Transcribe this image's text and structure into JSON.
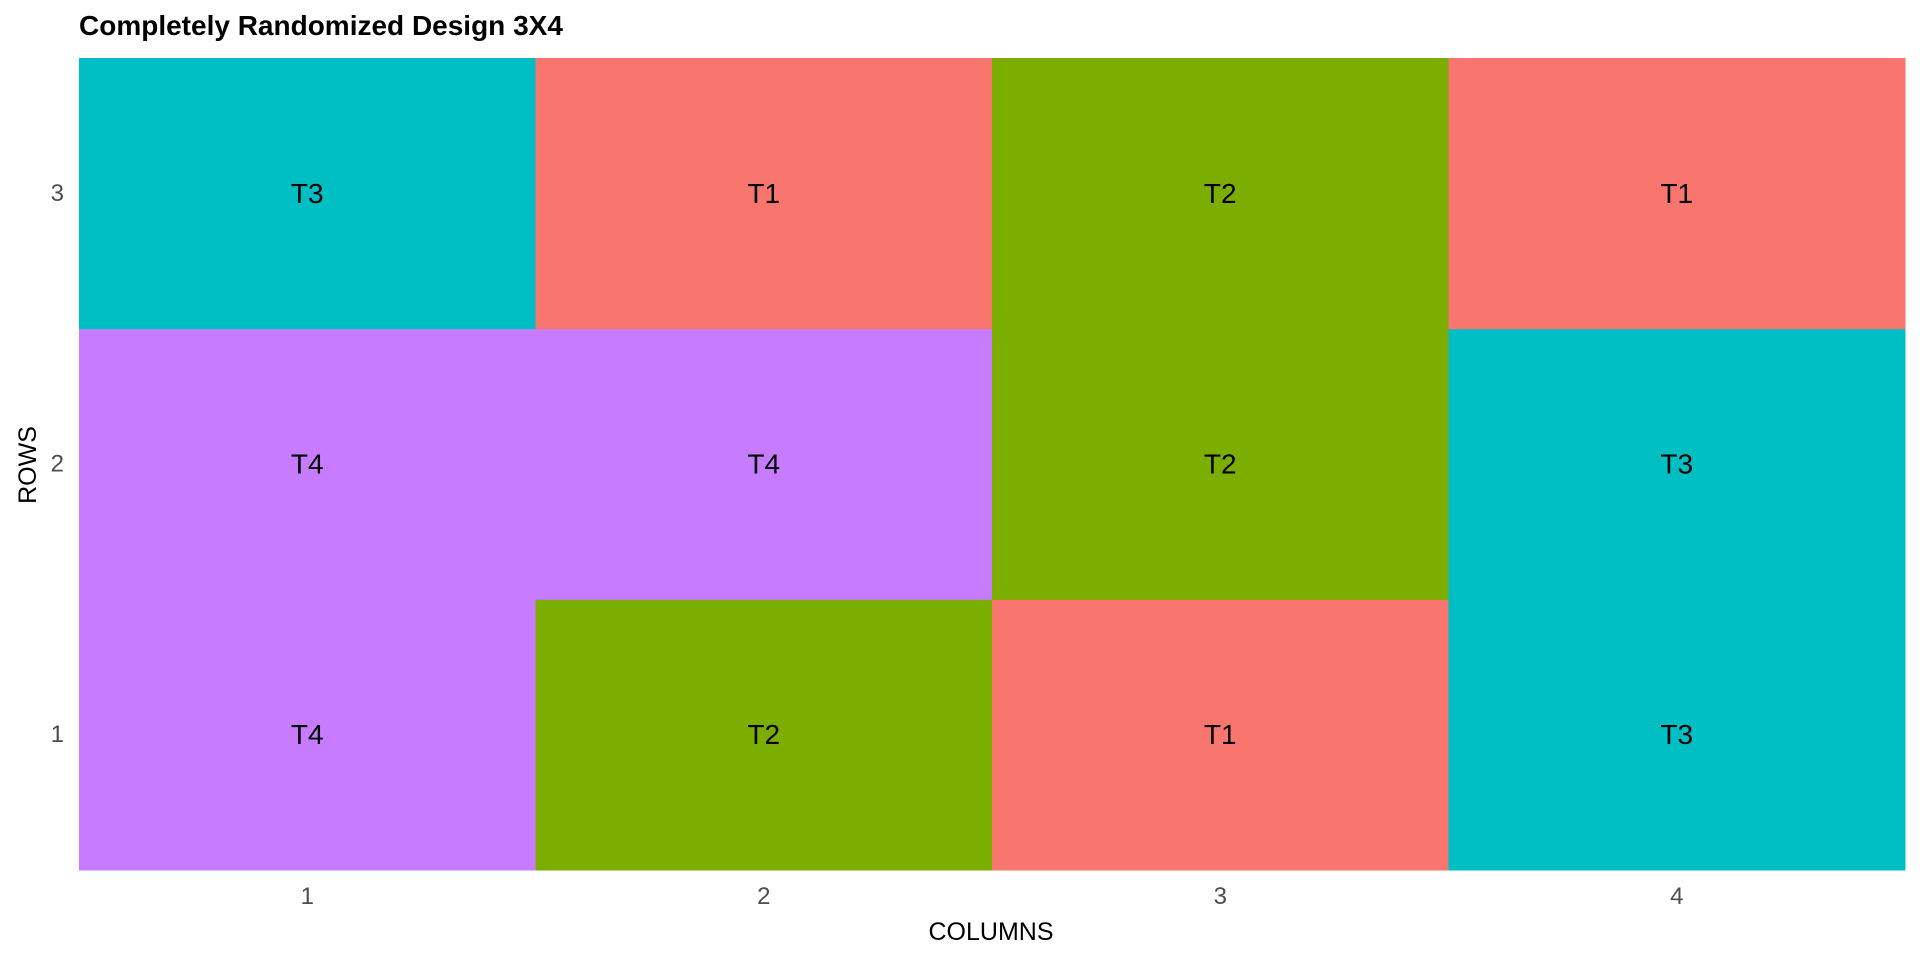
{
  "chart_data": {
    "type": "heatmap",
    "title": "Completely Randomized Design 3X4",
    "xlabel": "COLUMNS",
    "ylabel": "ROWS",
    "x_categories": [
      "1",
      "2",
      "3",
      "4"
    ],
    "y_categories": [
      "1",
      "2",
      "3"
    ],
    "grid": false,
    "legend": "none",
    "treatment_colors": {
      "T1": "#F8766D",
      "T2": "#7CAE00",
      "T3": "#00BFC4",
      "T4": "#C77CFF"
    },
    "cells": [
      {
        "col": 1,
        "row": 1,
        "treatment": "T4"
      },
      {
        "col": 2,
        "row": 1,
        "treatment": "T2"
      },
      {
        "col": 3,
        "row": 1,
        "treatment": "T1"
      },
      {
        "col": 4,
        "row": 1,
        "treatment": "T3"
      },
      {
        "col": 1,
        "row": 2,
        "treatment": "T4"
      },
      {
        "col": 2,
        "row": 2,
        "treatment": "T4"
      },
      {
        "col": 3,
        "row": 2,
        "treatment": "T2"
      },
      {
        "col": 4,
        "row": 2,
        "treatment": "T3"
      },
      {
        "col": 1,
        "row": 3,
        "treatment": "T3"
      },
      {
        "col": 2,
        "row": 3,
        "treatment": "T1"
      },
      {
        "col": 3,
        "row": 3,
        "treatment": "T2"
      },
      {
        "col": 4,
        "row": 3,
        "treatment": "T1"
      }
    ]
  }
}
